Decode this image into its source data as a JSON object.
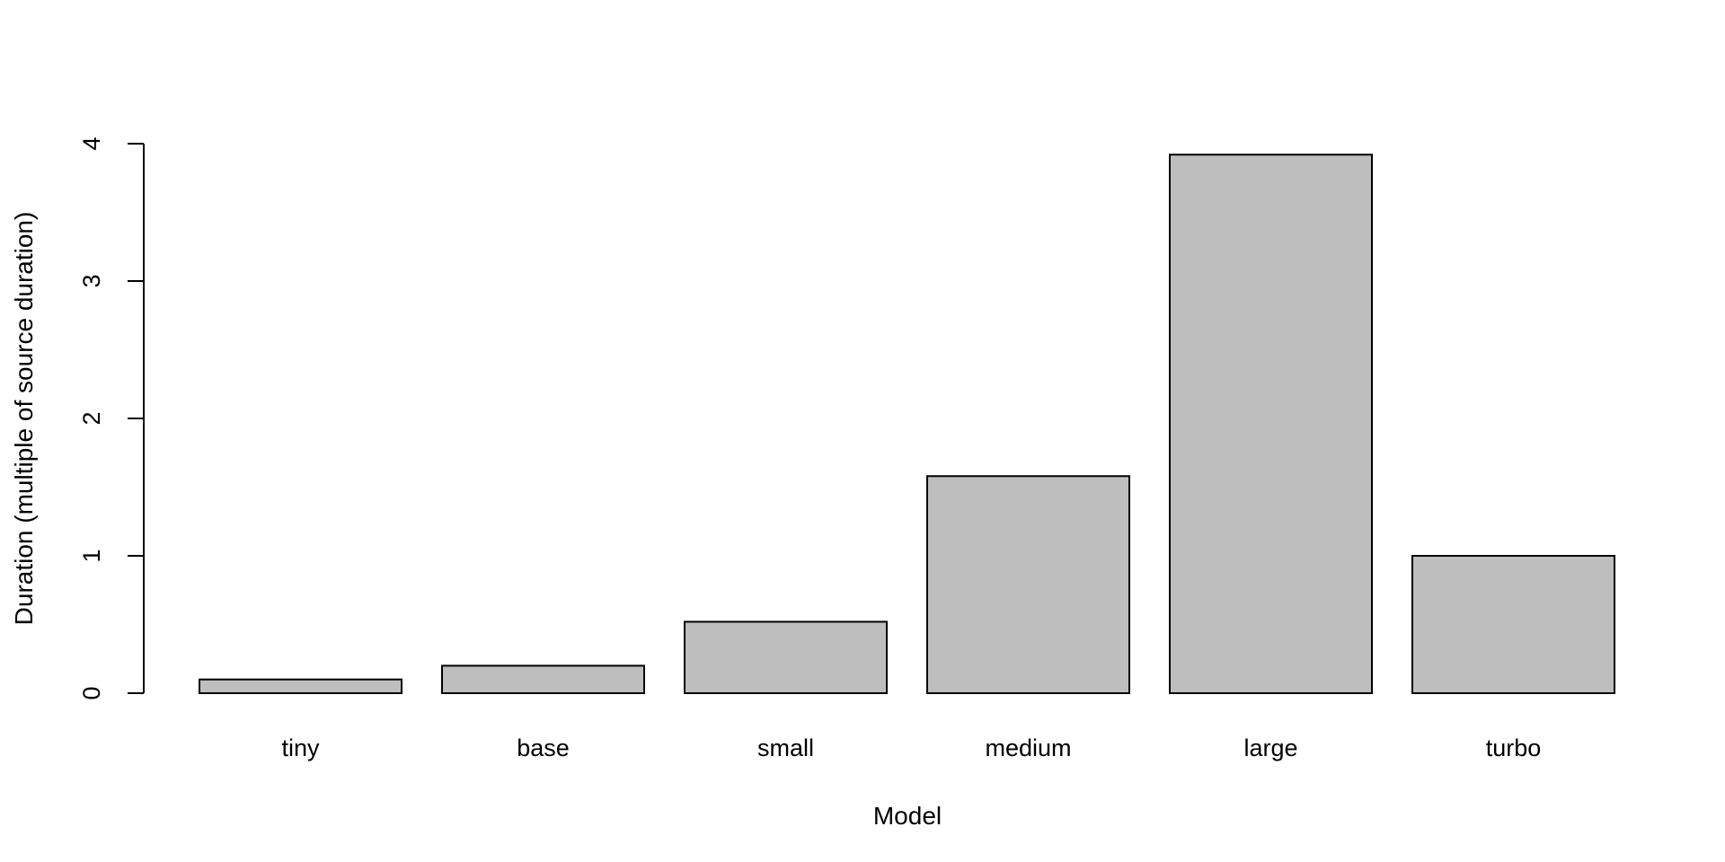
{
  "chart_data": {
    "type": "bar",
    "title": "",
    "categories": [
      "tiny",
      "base",
      "small",
      "medium",
      "large",
      "turbo"
    ],
    "values": [
      0.1,
      0.2,
      0.52,
      1.58,
      3.92,
      1.0
    ],
    "xlabel": "Model",
    "ylabel": "Duration (multiple of source duration)",
    "ylim": [
      0,
      4
    ],
    "yticks": [
      0,
      1,
      2,
      3,
      4
    ],
    "ytick_labels": [
      "0",
      "1",
      "2",
      "3",
      "4"
    ],
    "grid": false,
    "bar_color": "#bebebe",
    "edge_color": "#000000"
  }
}
